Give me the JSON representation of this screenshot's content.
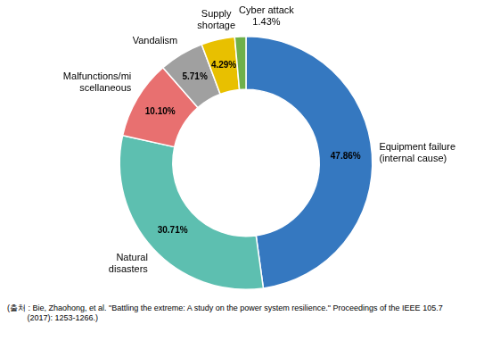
{
  "chart_data": {
    "type": "doughnut",
    "categories": [
      "Equipment failure\n(internal cause)",
      "Natural\ndisasters",
      "Malfunctions/mi\nscellaneous",
      "Vandalism",
      "Supply\nshortage",
      "Cyber attack"
    ],
    "values": [
      47.86,
      30.71,
      10.1,
      5.71,
      4.29,
      1.43
    ],
    "value_labels": [
      "47.86%",
      "30.71%",
      "10.10%",
      "5.71%",
      "4.29%",
      "1.43%"
    ],
    "colors": [
      "#3578C0",
      "#5DBFB0",
      "#E87070",
      "#A0A0A0",
      "#E8C000",
      "#6EB04A"
    ],
    "data_labels": true,
    "caption": "(출처 : Bie, Zhaohong, et al. \"Battling the extreme: A study on the power system resilience.\" Proceedings of the IEEE 105.7\n         (2017): 1253-1266.)"
  }
}
